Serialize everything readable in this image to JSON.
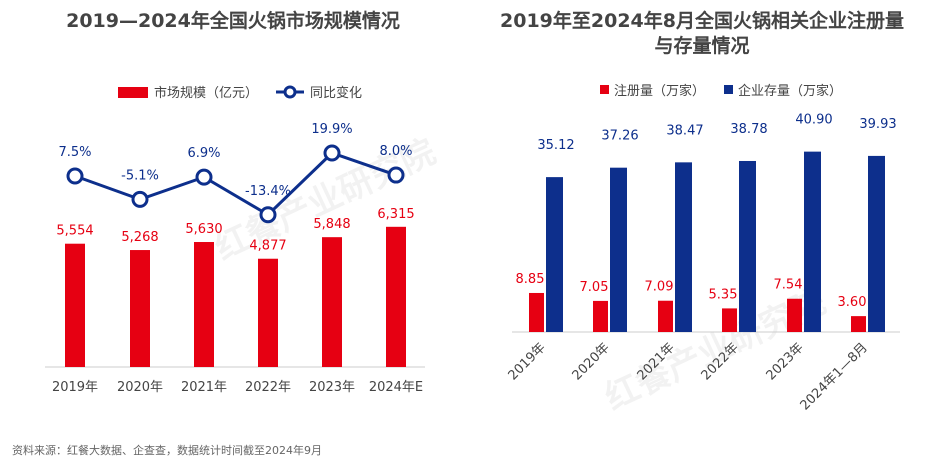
{
  "colors": {
    "red": "#e60012",
    "blue": "#0d2f8c",
    "text": "#444444"
  },
  "chart_data": [
    {
      "type": "bar+line",
      "title": "2019—2024年全国火锅市场规模情况",
      "categories": [
        "2019年",
        "2020年",
        "2021年",
        "2022年",
        "2023年",
        "2024年E"
      ],
      "series": [
        {
          "name": "市场规模（亿元）",
          "type": "bar",
          "values": [
            5554,
            5268,
            5630,
            4877,
            5848,
            6315
          ],
          "labels": [
            "5,554",
            "5,268",
            "5,630",
            "4,877",
            "5,848",
            "6,315"
          ]
        },
        {
          "name": "同比变化",
          "type": "line",
          "values": [
            7.5,
            -5.1,
            6.9,
            -13.4,
            19.9,
            8.0
          ],
          "labels": [
            "7.5%",
            "-5.1%",
            "6.9%",
            "-13.4%",
            "19.9%",
            "8.0%"
          ]
        }
      ],
      "legend": "top"
    },
    {
      "type": "bar",
      "title": [
        "2019年至2024年8月全国火锅相关企业注册量",
        "与存量情况"
      ],
      "categories": [
        "2019年",
        "2020年",
        "2021年",
        "2022年",
        "2023年",
        "2024年1—8月"
      ],
      "series": [
        {
          "name": "注册量（万家）",
          "values": [
            8.85,
            7.05,
            7.09,
            5.35,
            7.54,
            3.6
          ],
          "labels": [
            "8.85",
            "7.05",
            "7.09",
            "5.35",
            "7.54",
            "3.60"
          ]
        },
        {
          "name": "企业存量（万家）",
          "values": [
            35.12,
            37.26,
            38.47,
            38.78,
            40.9,
            39.93
          ],
          "labels": [
            "35.12",
            "37.26",
            "38.47",
            "38.78",
            "40.90",
            "39.93"
          ]
        }
      ],
      "legend": "top"
    }
  ],
  "source": "资料来源：红餐大数据、企查查，数据统计时间截至2024年9月",
  "watermark": "红餐产业研究院"
}
